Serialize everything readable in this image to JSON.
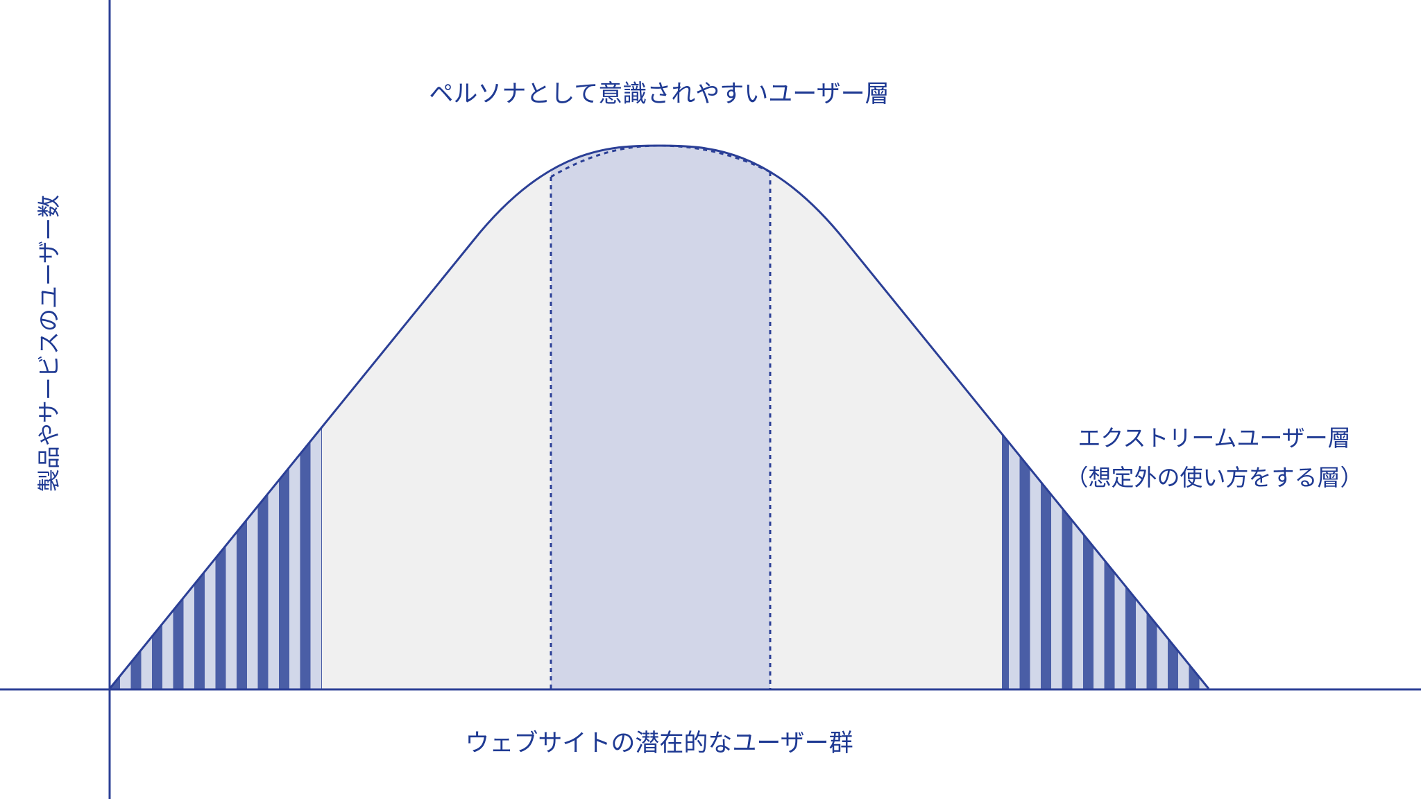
{
  "diagram": {
    "y_axis_label": "製品やサービスのユーザー数",
    "x_axis_label": "ウェブサイトの潜在的なユーザー群",
    "top_label": "ペルソナとして意識されやすいユーザー層",
    "right_label_line1": "エクストリームユーザー層",
    "right_label_line2": "（想定外の使い方をする層）"
  },
  "colors": {
    "accent": "#2b3f96",
    "stripe_dark": "#4a5ea6",
    "stripe_light": "#d1d7e9",
    "area_fill": "#f0f0f0",
    "persona_fill": "#d2d6e8"
  }
}
